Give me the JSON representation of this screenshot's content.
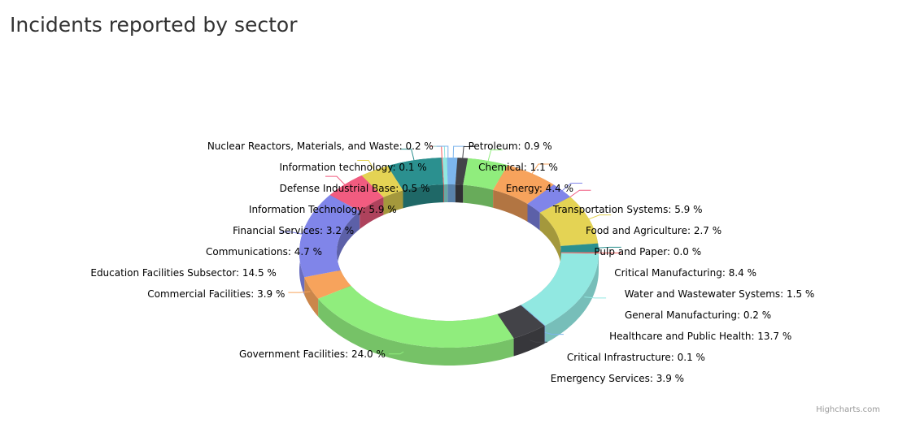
{
  "chart_data": {
    "type": "pie",
    "variant": "3d-donut",
    "title": "Incidents reported by sector",
    "value_suffix": " %",
    "slices": [
      {
        "name": "Petroleum",
        "value": 0.9,
        "color": "#7cb5ec"
      },
      {
        "name": "Chemical",
        "value": 1.1,
        "color": "#434348"
      },
      {
        "name": "Energy",
        "value": 4.4,
        "color": "#90ed7d"
      },
      {
        "name": "Transportation Systems",
        "value": 5.9,
        "color": "#f7a35c"
      },
      {
        "name": "Food and Agriculture",
        "value": 2.7,
        "color": "#8085e9"
      },
      {
        "name": "Pulp and Paper",
        "value": 0.0,
        "color": "#f15c80"
      },
      {
        "name": "Critical Manufacturing",
        "value": 8.4,
        "color": "#e4d354"
      },
      {
        "name": "Water and Wastewater Systems",
        "value": 1.5,
        "color": "#2b908f"
      },
      {
        "name": "General Manufacturing",
        "value": 0.2,
        "color": "#f45b5b"
      },
      {
        "name": "Healthcare and Public Health",
        "value": 13.7,
        "color": "#91e8e1"
      },
      {
        "name": "Critical Infrastructure",
        "value": 0.1,
        "color": "#7cb5ec"
      },
      {
        "name": "Emergency Services",
        "value": 3.9,
        "color": "#434348"
      },
      {
        "name": "Government Facilities",
        "value": 24.0,
        "color": "#90ed7d"
      },
      {
        "name": "Commercial Facilities",
        "value": 3.9,
        "color": "#f7a35c"
      },
      {
        "name": "Education Facilities Subsector",
        "value": 14.5,
        "color": "#8085e9"
      },
      {
        "name": "Communications",
        "value": 4.7,
        "color": "#f15c80"
      },
      {
        "name": "Financial Services",
        "value": 3.2,
        "color": "#e4d354"
      },
      {
        "name": "Information Technology",
        "value": 5.9,
        "color": "#2b908f"
      },
      {
        "name": "Information technology",
        "value": 0.1,
        "color": "#f45b5b"
      },
      {
        "name": "Defense Industrial Base",
        "value": 0.5,
        "color": "#91e8e1"
      },
      {
        "name": "Nuclear Reactors, Materials, and Waste",
        "value": 0.2,
        "color": "#7cb5ec"
      }
    ]
  },
  "credits": "Highcharts.com"
}
